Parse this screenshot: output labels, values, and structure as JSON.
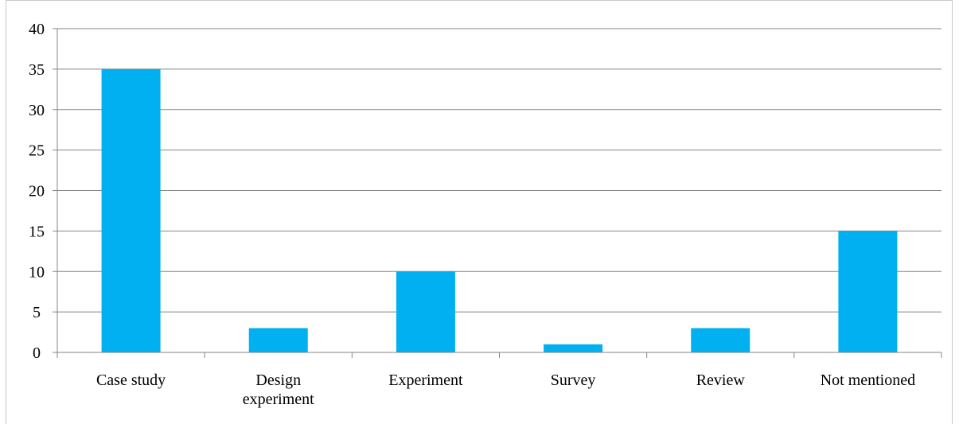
{
  "chart_data": {
    "type": "bar",
    "title": "",
    "xlabel": "",
    "ylabel": "",
    "categories": [
      "Case study",
      "Design experiment",
      "Experiment",
      "Survey",
      "Review",
      "Not mentioned"
    ],
    "category_lines": [
      [
        "Case study"
      ],
      [
        "Design",
        "experiment"
      ],
      [
        "Experiment"
      ],
      [
        "Survey"
      ],
      [
        "Review"
      ],
      [
        "Not mentioned"
      ]
    ],
    "values": [
      35,
      3,
      10,
      1,
      3,
      15
    ],
    "ylim": [
      0,
      40
    ],
    "yticks": [
      0,
      5,
      10,
      15,
      20,
      25,
      30,
      35,
      40
    ],
    "grid": true,
    "legend": "none",
    "bar_color": "#00B0F0",
    "grid_color": "#868686"
  }
}
